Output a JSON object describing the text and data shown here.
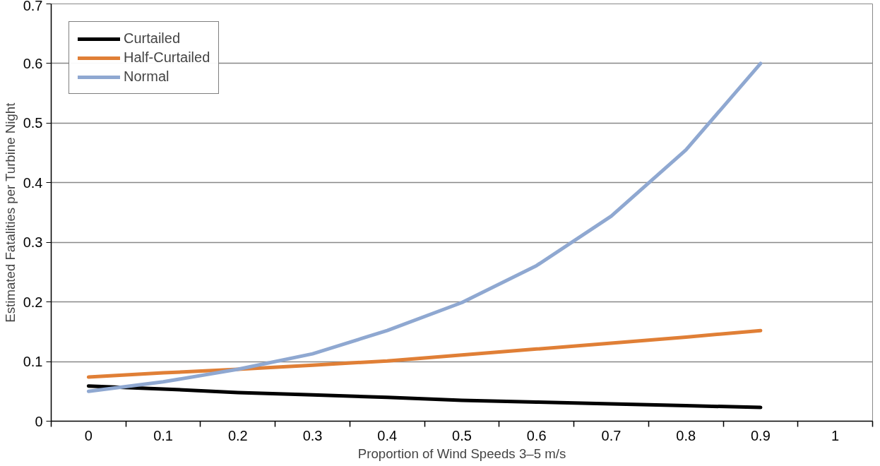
{
  "chart_data": {
    "type": "line",
    "xlabel": "Proportion of Wind Speeds 3–5 m/s",
    "ylabel": "Estimated Fatalities per Turbine Night",
    "categories": [
      "0",
      "0.1",
      "0.2",
      "0.3",
      "0.4",
      "0.5",
      "0.6",
      "0.7",
      "0.8",
      "0.9",
      "1"
    ],
    "series": [
      {
        "name": "Curtailed",
        "color": "#000000",
        "values": [
          0.059,
          0.054,
          0.048,
          0.044,
          0.04,
          0.035,
          0.032,
          0.029,
          0.026,
          0.023,
          null
        ]
      },
      {
        "name": "Half-Curtailed",
        "color": "#e07f36",
        "values": [
          0.074,
          0.081,
          0.087,
          0.094,
          0.101,
          0.111,
          0.121,
          0.131,
          0.141,
          0.152,
          null
        ]
      },
      {
        "name": "Normal",
        "color": "#8fa8d1",
        "values": [
          0.05,
          0.066,
          0.087,
          0.113,
          0.152,
          0.199,
          0.261,
          0.344,
          0.455,
          0.6,
          null
        ]
      }
    ],
    "ylim": [
      0,
      0.7
    ],
    "yticks": [
      0,
      0.1,
      0.2,
      0.3,
      0.4,
      0.5,
      0.6,
      0.7
    ],
    "grid": "y",
    "legend": "top left",
    "marker": "none",
    "line_style": "solid"
  }
}
